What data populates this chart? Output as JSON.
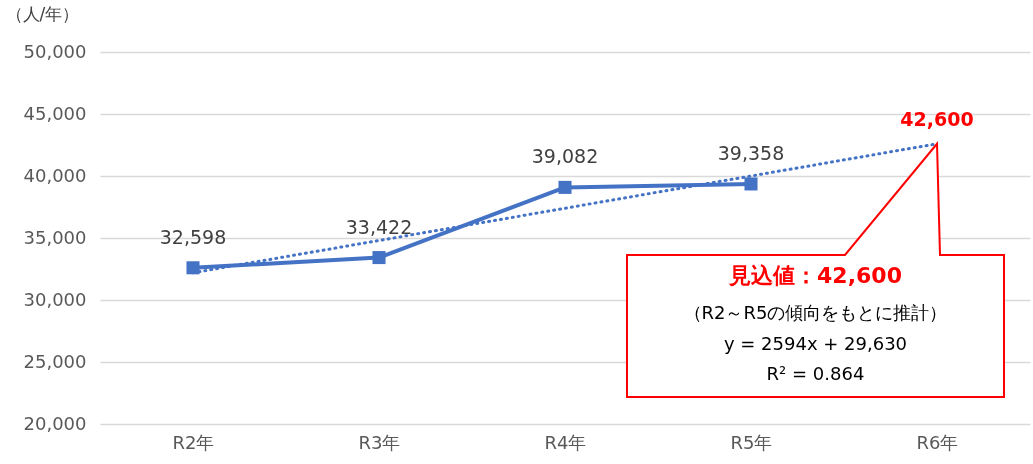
{
  "chart_data": {
    "type": "line",
    "ylabel": "（人/年）",
    "categories": [
      "R2年",
      "R3年",
      "R4年",
      "R5年",
      "R6年"
    ],
    "series": [
      {
        "color": "#4472c4",
        "values": [
          32598,
          33422,
          39082,
          39358,
          null
        ],
        "marker": "square",
        "line_style": "solid",
        "value_labels": [
          "32,598",
          "33,422",
          "39,082",
          "39,358",
          null
        ]
      },
      {
        "type": "line",
        "color": "#4472c4",
        "values": [
          32200,
          34800,
          37400,
          40000,
          42600
        ],
        "marker": "none",
        "line_style": "dotted",
        "value_labels": [
          null,
          null,
          null,
          null,
          "42,600"
        ]
      }
    ],
    "ylim": [
      20000,
      50000
    ],
    "yticks": [
      {
        "value": 20000,
        "label": "20,000"
      },
      {
        "value": 25000,
        "label": "25,000"
      },
      {
        "value": 30000,
        "label": "30,000"
      },
      {
        "value": 35000,
        "label": "35,000"
      },
      {
        "value": 40000,
        "label": "40,000"
      },
      {
        "value": 45000,
        "label": "45,000"
      },
      {
        "value": 50000,
        "label": "50,000"
      }
    ],
    "grid": "y",
    "annotations": [
      "見込値：42,600",
      "（R2～R5の傾向をもとに推計）",
      "y = 2594x + 29,630",
      "R² = 0.864"
    ]
  }
}
